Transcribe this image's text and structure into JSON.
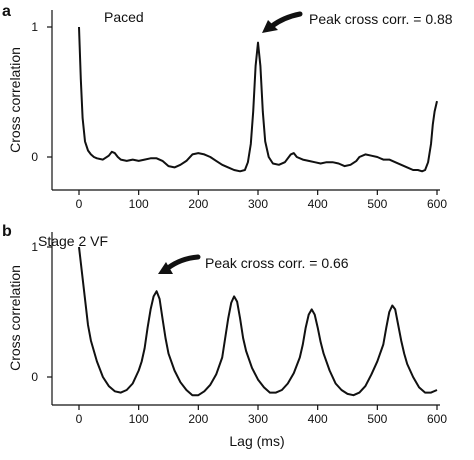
{
  "chart_data": [
    {
      "type": "line",
      "panel_letter": "a",
      "title": "Paced",
      "ylabel": "Cross correlation",
      "xlabel": "",
      "xlim": [
        0,
        600
      ],
      "ylim": [
        -0.15,
        1.05
      ],
      "x_ticks": [
        0,
        100,
        200,
        300,
        400,
        500,
        600
      ],
      "y_ticks": [
        0,
        1
      ],
      "annotation": {
        "text": "Peak cross corr. = 0.88",
        "x": 300,
        "y": 0.88
      },
      "series": [
        {
          "x": [
            0,
            3,
            6,
            10,
            15,
            20,
            25,
            30,
            40,
            50,
            55,
            60,
            65,
            70,
            80,
            90,
            100,
            110,
            120,
            130,
            140,
            150,
            160,
            170,
            180,
            190,
            200,
            210,
            220,
            230,
            240,
            250,
            260,
            270,
            278,
            283,
            288,
            292,
            296,
            300,
            304,
            308,
            312,
            318,
            325,
            335,
            345,
            355,
            360,
            365,
            375,
            385,
            395,
            405,
            415,
            425,
            435,
            445,
            455,
            465,
            470,
            480,
            490,
            500,
            510,
            520,
            530,
            540,
            550,
            560,
            568,
            575,
            580,
            585,
            590,
            593,
            596,
            600
          ],
          "y": [
            1.0,
            0.6,
            0.3,
            0.12,
            0.05,
            0.02,
            0.0,
            -0.01,
            -0.02,
            0.01,
            0.04,
            0.03,
            0.0,
            -0.02,
            -0.03,
            -0.02,
            -0.03,
            -0.02,
            -0.01,
            -0.01,
            -0.03,
            -0.07,
            -0.08,
            -0.06,
            -0.03,
            0.02,
            0.03,
            0.02,
            0.0,
            -0.03,
            -0.06,
            -0.08,
            -0.1,
            -0.11,
            -0.1,
            -0.04,
            0.1,
            0.35,
            0.7,
            0.88,
            0.7,
            0.35,
            0.12,
            0.0,
            -0.05,
            -0.06,
            -0.04,
            0.02,
            0.03,
            0.0,
            -0.02,
            -0.03,
            -0.04,
            -0.05,
            -0.04,
            -0.04,
            -0.05,
            -0.07,
            -0.06,
            -0.03,
            0.0,
            0.02,
            0.01,
            0.0,
            -0.02,
            -0.02,
            -0.04,
            -0.06,
            -0.08,
            -0.1,
            -0.1,
            -0.11,
            -0.1,
            -0.04,
            0.1,
            0.25,
            0.35,
            0.43
          ]
        }
      ]
    },
    {
      "type": "line",
      "panel_letter": "b",
      "title": "Stage 2 VF",
      "ylabel": "Cross correlation",
      "xlabel": "Lag (ms)",
      "xlim": [
        0,
        600
      ],
      "ylim": [
        -0.15,
        1.05
      ],
      "x_ticks": [
        0,
        100,
        200,
        300,
        400,
        500,
        600
      ],
      "y_ticks": [
        0,
        1
      ],
      "annotation": {
        "text": "Peak cross corr. = 0.66",
        "x": 130,
        "y": 0.66
      },
      "series": [
        {
          "x": [
            0,
            5,
            10,
            15,
            20,
            30,
            40,
            50,
            60,
            70,
            80,
            90,
            100,
            105,
            110,
            115,
            120,
            125,
            130,
            135,
            140,
            145,
            150,
            160,
            170,
            180,
            190,
            200,
            210,
            220,
            230,
            240,
            245,
            250,
            255,
            260,
            265,
            270,
            275,
            280,
            290,
            300,
            310,
            320,
            330,
            340,
            350,
            360,
            370,
            375,
            380,
            385,
            390,
            395,
            400,
            405,
            410,
            420,
            430,
            440,
            450,
            460,
            470,
            480,
            490,
            500,
            510,
            515,
            520,
            525,
            530,
            535,
            540,
            545,
            550,
            560,
            570,
            580,
            590,
            600
          ],
          "y": [
            1.0,
            0.8,
            0.6,
            0.4,
            0.28,
            0.12,
            0.0,
            -0.07,
            -0.11,
            -0.12,
            -0.1,
            -0.05,
            0.05,
            0.12,
            0.22,
            0.38,
            0.52,
            0.62,
            0.66,
            0.6,
            0.45,
            0.3,
            0.18,
            0.05,
            -0.04,
            -0.1,
            -0.14,
            -0.14,
            -0.11,
            -0.06,
            0.02,
            0.15,
            0.3,
            0.45,
            0.57,
            0.62,
            0.58,
            0.45,
            0.3,
            0.2,
            0.07,
            -0.02,
            -0.08,
            -0.12,
            -0.12,
            -0.1,
            -0.05,
            0.03,
            0.15,
            0.25,
            0.38,
            0.48,
            0.52,
            0.48,
            0.38,
            0.27,
            0.18,
            0.05,
            -0.05,
            -0.1,
            -0.13,
            -0.14,
            -0.12,
            -0.07,
            0.02,
            0.12,
            0.25,
            0.38,
            0.5,
            0.55,
            0.52,
            0.4,
            0.28,
            0.18,
            0.1,
            0.0,
            -0.08,
            -0.12,
            -0.12,
            -0.1
          ]
        }
      ]
    }
  ]
}
